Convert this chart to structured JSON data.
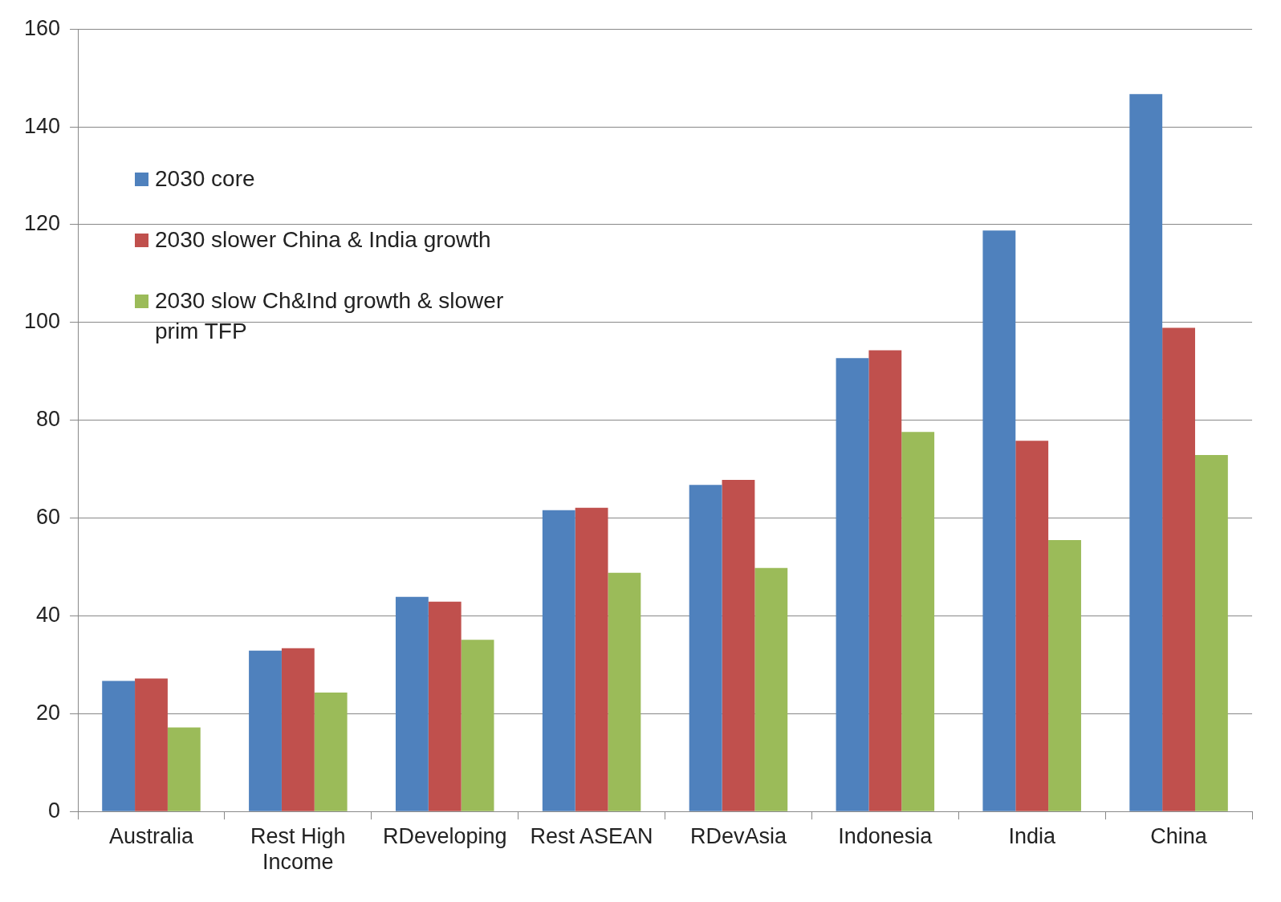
{
  "chart_data": {
    "type": "bar",
    "categories": [
      "Australia",
      "Rest High Income",
      "RDeveloping",
      "Rest ASEAN",
      "RDevAsia",
      "Indonesia",
      "India",
      "China"
    ],
    "series": [
      {
        "name": "2030 core",
        "color": "#4f81bd",
        "values": [
          26.7,
          32.9,
          43.9,
          61.6,
          66.8,
          92.7,
          118.8,
          146.7
        ]
      },
      {
        "name": "2030 slower China & India growth",
        "color": "#c0504d",
        "values": [
          27.2,
          33.4,
          42.9,
          62.1,
          67.8,
          94.3,
          75.8,
          98.9
        ]
      },
      {
        "name": "2030 slow Ch&Ind growth & slower prim TFP",
        "color": "#9bbb59",
        "values": [
          17.2,
          24.3,
          35.1,
          48.8,
          49.8,
          77.6,
          55.5,
          72.9
        ]
      }
    ],
    "ylim": [
      0,
      160
    ],
    "yticks": [
      0,
      20,
      40,
      60,
      80,
      100,
      120,
      140,
      160
    ],
    "grid": "y",
    "legend": "top left"
  }
}
